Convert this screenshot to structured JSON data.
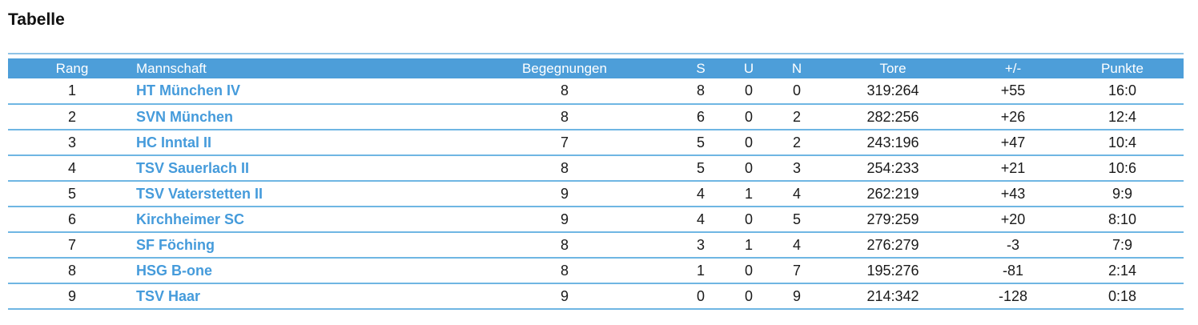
{
  "title": "Tabelle",
  "colors": {
    "header_bg": "#4d9ed9",
    "header_text": "#ffffff",
    "team_link": "#459bdb",
    "row_divider": "#6fb6e3",
    "body_text": "#1a1a1a"
  },
  "table": {
    "columns": [
      {
        "key": "rang",
        "label": "Rang",
        "align": "center"
      },
      {
        "key": "mannschaft",
        "label": "Mannschaft",
        "align": "left"
      },
      {
        "key": "begegnungen",
        "label": "Begegnungen",
        "align": "center"
      },
      {
        "key": "s",
        "label": "S",
        "align": "center"
      },
      {
        "key": "u",
        "label": "U",
        "align": "center"
      },
      {
        "key": "n",
        "label": "N",
        "align": "center"
      },
      {
        "key": "tore",
        "label": "Tore",
        "align": "center"
      },
      {
        "key": "plusminus",
        "label": "+/-",
        "align": "center"
      },
      {
        "key": "punkte",
        "label": "Punkte",
        "align": "center"
      }
    ],
    "rows": [
      {
        "rang": "1",
        "mannschaft": "HT München IV",
        "begegnungen": "8",
        "s": "8",
        "u": "0",
        "n": "0",
        "tore": "319:264",
        "plusminus": "+55",
        "punkte": "16:0"
      },
      {
        "rang": "2",
        "mannschaft": "SVN München",
        "begegnungen": "8",
        "s": "6",
        "u": "0",
        "n": "2",
        "tore": "282:256",
        "plusminus": "+26",
        "punkte": "12:4"
      },
      {
        "rang": "3",
        "mannschaft": "HC Inntal II",
        "begegnungen": "7",
        "s": "5",
        "u": "0",
        "n": "2",
        "tore": "243:196",
        "plusminus": "+47",
        "punkte": "10:4"
      },
      {
        "rang": "4",
        "mannschaft": "TSV Sauerlach II",
        "begegnungen": "8",
        "s": "5",
        "u": "0",
        "n": "3",
        "tore": "254:233",
        "plusminus": "+21",
        "punkte": "10:6"
      },
      {
        "rang": "5",
        "mannschaft": "TSV Vaterstetten II",
        "begegnungen": "9",
        "s": "4",
        "u": "1",
        "n": "4",
        "tore": "262:219",
        "plusminus": "+43",
        "punkte": "9:9"
      },
      {
        "rang": "6",
        "mannschaft": "Kirchheimer SC",
        "begegnungen": "9",
        "s": "4",
        "u": "0",
        "n": "5",
        "tore": "279:259",
        "plusminus": "+20",
        "punkte": "8:10"
      },
      {
        "rang": "7",
        "mannschaft": "SF Föching",
        "begegnungen": "8",
        "s": "3",
        "u": "1",
        "n": "4",
        "tore": "276:279",
        "plusminus": "-3",
        "punkte": "7:9"
      },
      {
        "rang": "8",
        "mannschaft": "HSG B-one",
        "begegnungen": "8",
        "s": "1",
        "u": "0",
        "n": "7",
        "tore": "195:276",
        "plusminus": "-81",
        "punkte": "2:14"
      },
      {
        "rang": "9",
        "mannschaft": "TSV Haar",
        "begegnungen": "9",
        "s": "0",
        "u": "0",
        "n": "9",
        "tore": "214:342",
        "plusminus": "-128",
        "punkte": "0:18"
      }
    ]
  }
}
